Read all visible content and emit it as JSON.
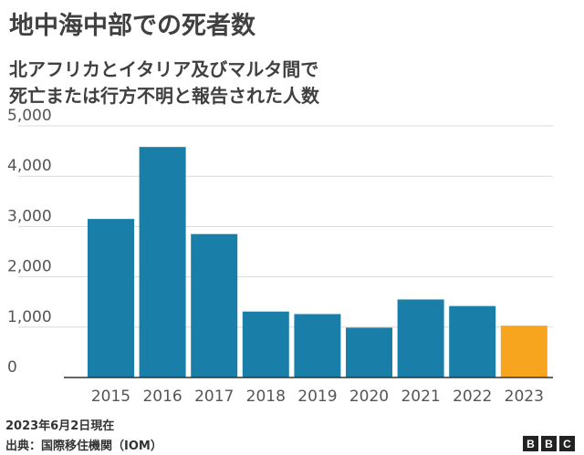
{
  "title": "地中海中部での死者数",
  "subtitle_lines": [
    "北アフリカとイタリア及びマルタ間で",
    "死亡または行方不明と報告された人数"
  ],
  "note": "2023年6月2日現在",
  "source": "出典：国際移住機関（IOM）",
  "logo": [
    "B",
    "B",
    "C"
  ],
  "colors": {
    "bar": "#1a7fa8",
    "highlight": "#f7a51e",
    "grid": "#d9d9d9",
    "axis": "#333333"
  },
  "chart_data": {
    "type": "bar",
    "categories": [
      "2015",
      "2016",
      "2017",
      "2018",
      "2019",
      "2020",
      "2021",
      "2022",
      "2023"
    ],
    "values": [
      3150,
      4580,
      2850,
      1310,
      1260,
      990,
      1550,
      1420,
      1030
    ],
    "highlight_index": 8,
    "ylim": [
      0,
      5000
    ],
    "yticks": [
      0,
      1000,
      2000,
      3000,
      4000,
      5000
    ],
    "ytick_labels": [
      "0",
      "1,000",
      "2,000",
      "3,000",
      "4,000",
      "5,000"
    ],
    "grid": true
  }
}
